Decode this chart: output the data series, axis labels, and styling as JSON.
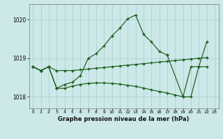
{
  "xlabel": "Graphe pression niveau de la mer (hPa)",
  "bg_color": "#cce8e8",
  "line_color": "#1a5c1a",
  "grid_color": "#aacccc",
  "yticks": [
    1018,
    1019,
    1020
  ],
  "ylim": [
    1017.7,
    1020.4
  ],
  "xlim": [
    -0.5,
    23.5
  ],
  "line1_x": [
    0,
    1,
    2,
    3,
    4,
    5,
    6,
    7,
    8,
    9,
    10,
    11,
    12,
    13,
    14,
    15,
    16,
    17
  ],
  "line1_y": [
    1018.78,
    1018.68,
    1018.78,
    1018.22,
    1018.32,
    1018.38,
    1018.55,
    1019.0,
    1019.12,
    1019.32,
    1019.58,
    1019.78,
    1020.02,
    1020.12,
    1019.62,
    1019.42,
    1019.18,
    1019.08
  ],
  "line2_x": [
    0,
    1,
    2,
    3,
    4,
    5,
    6,
    7,
    8,
    9,
    10,
    11,
    12,
    13,
    14,
    15,
    16,
    17,
    18,
    19,
    20,
    21,
    22
  ],
  "line2_y": [
    1018.78,
    1018.68,
    1018.78,
    1018.68,
    1018.68,
    1018.68,
    1018.7,
    1018.72,
    1018.74,
    1018.76,
    1018.78,
    1018.8,
    1018.82,
    1018.84,
    1018.86,
    1018.88,
    1018.9,
    1018.92,
    1018.94,
    1018.96,
    1018.98,
    1019.0,
    1019.02
  ],
  "line3_x": [
    0,
    1,
    2,
    3,
    4,
    5,
    6,
    7,
    8,
    9,
    10,
    11,
    12,
    13,
    14,
    15,
    16,
    17,
    18,
    19,
    20,
    21,
    22
  ],
  "line3_y": [
    1018.78,
    1018.68,
    1018.78,
    1018.22,
    1018.22,
    1018.28,
    1018.32,
    1018.35,
    1018.36,
    1018.36,
    1018.35,
    1018.33,
    1018.3,
    1018.27,
    1018.23,
    1018.18,
    1018.14,
    1018.1,
    1018.05,
    1018.0,
    1018.0,
    1018.78,
    1018.78
  ],
  "line4_x": [
    17,
    19,
    20,
    21,
    22
  ],
  "line4_y": [
    1019.08,
    1018.0,
    1018.78,
    1018.78,
    1019.42
  ]
}
